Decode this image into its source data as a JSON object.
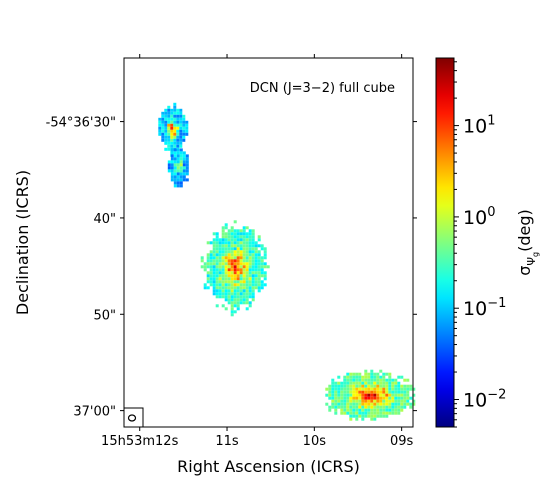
{
  "chart_data": {
    "type": "heatmap",
    "annotation": "DCN (J=3−2) full cube",
    "xlabel": "Right Ascension (ICRS)",
    "ylabel": "Declination (ICRS)",
    "x_ticks": [
      {
        "value": 12,
        "label": "15h53m12s"
      },
      {
        "value": 11,
        "label": "11s"
      },
      {
        "value": 10,
        "label": "10s"
      },
      {
        "value": 9,
        "label": "09s"
      }
    ],
    "y_ticks": [
      {
        "value": 30,
        "label": "-54°36'30\""
      },
      {
        "value": 40,
        "label": "40\""
      },
      {
        "value": 50,
        "label": "50\""
      },
      {
        "value": 60,
        "label": "37'00\""
      }
    ],
    "xlim": [
      12.18,
      8.87
    ],
    "ylim": [
      61.7,
      23.4
    ],
    "colorbar": {
      "label_base": "σ",
      "label_sub": "Ψ",
      "label_subsub": "g",
      "label_rest": "(deg)",
      "scale": "log",
      "range": [
        0.005,
        55
      ],
      "ticks": [
        {
          "value": 0.01,
          "mantissa": "10",
          "exponent": "−2"
        },
        {
          "value": 0.1,
          "mantissa": "10",
          "exponent": "−1"
        },
        {
          "value": 1,
          "mantissa": "10",
          "exponent": "0"
        },
        {
          "value": 10,
          "mantissa": "10",
          "exponent": "1"
        }
      ],
      "colormap": "jet"
    },
    "blobs": [
      {
        "ra": 11.64,
        "dec": 30.6,
        "rx": 0.14,
        "ry": 2.2,
        "base": -1.0,
        "hot": 1.0
      },
      {
        "ra": 11.57,
        "dec": 34.5,
        "rx": 0.11,
        "ry": 1.8,
        "base": -1.1,
        "hot": -0.1
      },
      {
        "ra": 10.92,
        "dec": 45.0,
        "rx": 0.32,
        "ry": 3.9,
        "base": -0.6,
        "hot": 1.1
      },
      {
        "ra": 9.38,
        "dec": 58.3,
        "rx": 0.46,
        "ry": 2.2,
        "base": -0.4,
        "hot": 1.3
      }
    ],
    "grid": false
  }
}
